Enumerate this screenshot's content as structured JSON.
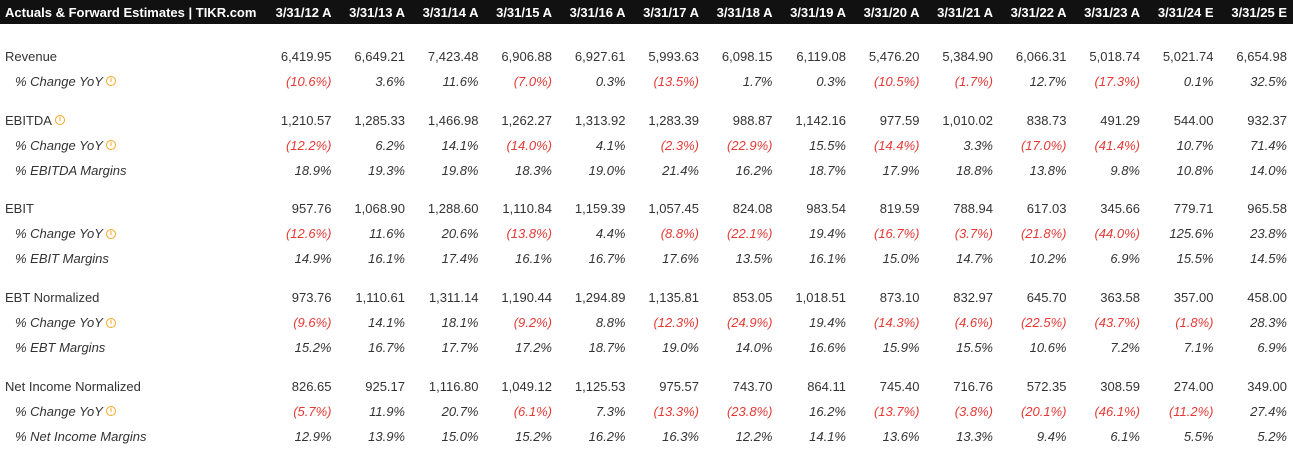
{
  "header": {
    "title": "Actuals & Forward Estimates | TIKR.com",
    "periods": [
      "3/31/12 A",
      "3/31/13 A",
      "3/31/14 A",
      "3/31/15 A",
      "3/31/16 A",
      "3/31/17 A",
      "3/31/18 A",
      "3/31/19 A",
      "3/31/20 A",
      "3/31/21 A",
      "3/31/22 A",
      "3/31/23 A",
      "3/31/24 E",
      "3/31/25 E"
    ]
  },
  "info_glyph": "i",
  "colors": {
    "header_bg": "#111111",
    "negative": "#e53935",
    "info_icon": "#f5a623"
  },
  "sections": [
    {
      "rows": [
        {
          "label": "Revenue",
          "type": "main",
          "values": [
            "6,419.95",
            "6,649.21",
            "7,423.48",
            "6,906.88",
            "6,927.61",
            "5,993.63",
            "6,098.15",
            "6,119.08",
            "5,476.20",
            "5,384.90",
            "6,066.31",
            "5,018.74",
            "5,021.74",
            "6,654.98"
          ]
        },
        {
          "label": "% Change YoY",
          "type": "sub",
          "info": true,
          "values": [
            "(10.6%)",
            "3.6%",
            "11.6%",
            "(7.0%)",
            "0.3%",
            "(13.5%)",
            "1.7%",
            "0.3%",
            "(10.5%)",
            "(1.7%)",
            "12.7%",
            "(17.3%)",
            "0.1%",
            "32.5%"
          ]
        }
      ]
    },
    {
      "rows": [
        {
          "label": "EBITDA",
          "type": "main",
          "info": true,
          "values": [
            "1,210.57",
            "1,285.33",
            "1,466.98",
            "1,262.27",
            "1,313.92",
            "1,283.39",
            "988.87",
            "1,142.16",
            "977.59",
            "1,010.02",
            "838.73",
            "491.29",
            "544.00",
            "932.37"
          ]
        },
        {
          "label": "% Change YoY",
          "type": "sub",
          "info": true,
          "values": [
            "(12.2%)",
            "6.2%",
            "14.1%",
            "(14.0%)",
            "4.1%",
            "(2.3%)",
            "(22.9%)",
            "15.5%",
            "(14.4%)",
            "3.3%",
            "(17.0%)",
            "(41.4%)",
            "10.7%",
            "71.4%"
          ]
        },
        {
          "label": "% EBITDA Margins",
          "type": "sub",
          "values": [
            "18.9%",
            "19.3%",
            "19.8%",
            "18.3%",
            "19.0%",
            "21.4%",
            "16.2%",
            "18.7%",
            "17.9%",
            "18.8%",
            "13.8%",
            "9.8%",
            "10.8%",
            "14.0%"
          ]
        }
      ]
    },
    {
      "rows": [
        {
          "label": "EBIT",
          "type": "main",
          "values": [
            "957.76",
            "1,068.90",
            "1,288.60",
            "1,110.84",
            "1,159.39",
            "1,057.45",
            "824.08",
            "983.54",
            "819.59",
            "788.94",
            "617.03",
            "345.66",
            "779.71",
            "965.58"
          ]
        },
        {
          "label": "% Change YoY",
          "type": "sub",
          "info": true,
          "values": [
            "(12.6%)",
            "11.6%",
            "20.6%",
            "(13.8%)",
            "4.4%",
            "(8.8%)",
            "(22.1%)",
            "19.4%",
            "(16.7%)",
            "(3.7%)",
            "(21.8%)",
            "(44.0%)",
            "125.6%",
            "23.8%"
          ]
        },
        {
          "label": "% EBIT Margins",
          "type": "sub",
          "values": [
            "14.9%",
            "16.1%",
            "17.4%",
            "16.1%",
            "16.7%",
            "17.6%",
            "13.5%",
            "16.1%",
            "15.0%",
            "14.7%",
            "10.2%",
            "6.9%",
            "15.5%",
            "14.5%"
          ]
        }
      ]
    },
    {
      "rows": [
        {
          "label": "EBT Normalized",
          "type": "main",
          "values": [
            "973.76",
            "1,110.61",
            "1,311.14",
            "1,190.44",
            "1,294.89",
            "1,135.81",
            "853.05",
            "1,018.51",
            "873.10",
            "832.97",
            "645.70",
            "363.58",
            "357.00",
            "458.00"
          ]
        },
        {
          "label": "% Change YoY",
          "type": "sub",
          "info": true,
          "values": [
            "(9.6%)",
            "14.1%",
            "18.1%",
            "(9.2%)",
            "8.8%",
            "(12.3%)",
            "(24.9%)",
            "19.4%",
            "(14.3%)",
            "(4.6%)",
            "(22.5%)",
            "(43.7%)",
            "(1.8%)",
            "28.3%"
          ]
        },
        {
          "label": "% EBT Margins",
          "type": "sub",
          "values": [
            "15.2%",
            "16.7%",
            "17.7%",
            "17.2%",
            "18.7%",
            "19.0%",
            "14.0%",
            "16.6%",
            "15.9%",
            "15.5%",
            "10.6%",
            "7.2%",
            "7.1%",
            "6.9%"
          ]
        }
      ]
    },
    {
      "rows": [
        {
          "label": "Net Income Normalized",
          "type": "main",
          "values": [
            "826.65",
            "925.17",
            "1,116.80",
            "1,049.12",
            "1,125.53",
            "975.57",
            "743.70",
            "864.11",
            "745.40",
            "716.76",
            "572.35",
            "308.59",
            "274.00",
            "349.00"
          ]
        },
        {
          "label": "% Change YoY",
          "type": "sub",
          "info": true,
          "values": [
            "(5.7%)",
            "11.9%",
            "20.7%",
            "(6.1%)",
            "7.3%",
            "(13.3%)",
            "(23.8%)",
            "16.2%",
            "(13.7%)",
            "(3.8%)",
            "(20.1%)",
            "(46.1%)",
            "(11.2%)",
            "27.4%"
          ]
        },
        {
          "label": "% Net Income Margins",
          "type": "sub",
          "values": [
            "12.9%",
            "13.9%",
            "15.0%",
            "15.2%",
            "16.2%",
            "16.3%",
            "12.2%",
            "14.1%",
            "13.6%",
            "13.3%",
            "9.4%",
            "6.1%",
            "5.5%",
            "5.2%"
          ]
        }
      ]
    }
  ]
}
